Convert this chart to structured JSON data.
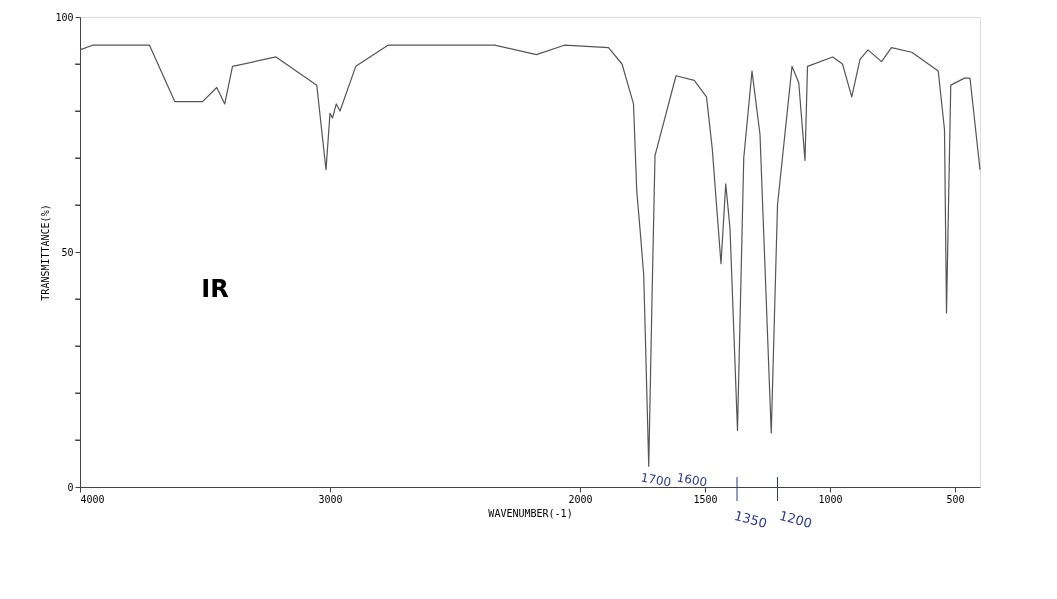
{
  "chart_data": {
    "type": "line",
    "xlabel": "WAVENUMBER(-1)",
    "ylabel": "TRANSMITTANCE(%)",
    "xlim": [
      4000,
      400
    ],
    "ylim": [
      0,
      100
    ],
    "xticks": [
      4000,
      3000,
      2000,
      1500,
      1000,
      500
    ],
    "yticks": [
      0,
      {
        "value": 10,
        "label": null
      },
      {
        "value": 20,
        "label": null
      },
      {
        "value": 30,
        "label": null
      },
      {
        "value": 40,
        "label": null
      },
      50,
      {
        "value": 60,
        "label": null
      },
      {
        "value": 70,
        "label": null
      },
      {
        "value": 80,
        "label": null
      },
      {
        "value": 90,
        "label": null
      },
      100
    ],
    "grid": false,
    "marker": "none",
    "line_style": "solid",
    "x": [
      4000,
      3950,
      3722,
      3621,
      3510,
      3453,
      3421,
      3390,
      3216,
      3053,
      3016,
      3000,
      2990,
      2975,
      2960,
      2897,
      2768,
      2600,
      2342,
      2174,
      2063,
      1886,
      1832,
      1786,
      1773,
      1757,
      1745,
      1725,
      1712,
      1700,
      1616,
      1543,
      1494,
      1471,
      1436,
      1417,
      1400,
      1370,
      1345,
      1312,
      1280,
      1235,
      1210,
      1152,
      1125,
      1100,
      1090,
      989,
      950,
      913,
      880,
      848,
      794,
      754,
      673,
      567,
      542,
      534,
      517,
      462,
      440,
      400
    ],
    "series": [
      {
        "color": "#555555",
        "values": [
          93,
          94,
          94,
          82,
          82,
          85,
          81.5,
          89.5,
          91.5,
          85.5,
          67.5,
          79.5,
          78.5,
          81.5,
          80,
          89.5,
          94,
          94,
          94,
          92,
          94,
          93.5,
          90,
          81.5,
          63,
          53,
          45,
          4.4,
          40,
          70.5,
          87.5,
          86.5,
          83,
          72,
          47.5,
          64.5,
          55,
          12,
          70,
          88.5,
          75,
          11.5,
          60,
          89.5,
          86,
          69.5,
          89.5,
          91.5,
          90,
          83,
          91,
          93,
          90.5,
          93.5,
          92.5,
          88.5,
          76,
          37,
          85.5,
          87,
          87,
          67.5
        ]
      }
    ],
    "annotations": [
      "IR",
      "1700",
      "1600",
      "1350",
      "1200"
    ]
  }
}
